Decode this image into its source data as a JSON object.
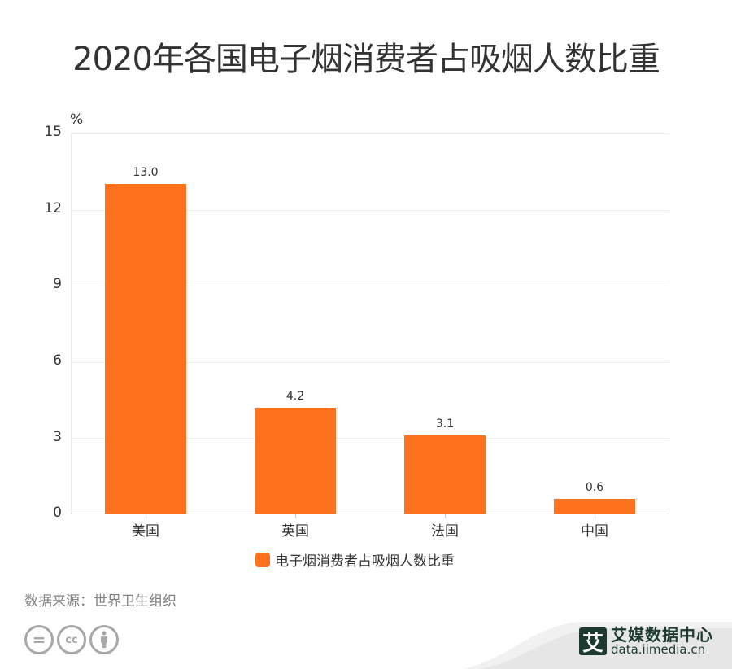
{
  "title": "2020年各国电子烟消费者占吸烟人数比重",
  "chart_data": {
    "type": "bar",
    "title": "2020年各国电子烟消费者占吸烟人数比重",
    "categories": [
      "美国",
      "英国",
      "法国",
      "中国"
    ],
    "series": [
      {
        "name": "电子烟消费者占吸烟人数比重",
        "values": [
          13.0,
          4.2,
          3.1,
          0.6
        ],
        "color": "#ff711d"
      }
    ],
    "value_labels": [
      "13.0",
      "4.2",
      "3.1",
      "0.6"
    ],
    "xlabel": "",
    "ylabel": "%",
    "ylim": [
      0,
      15
    ],
    "yticks": [
      "0",
      "3",
      "6",
      "9",
      "12",
      "15"
    ],
    "grid": true,
    "legend_position": "bottom"
  },
  "legend": {
    "label": "电子烟消费者占吸烟人数比重",
    "color": "#ff711d"
  },
  "footer": {
    "source": "数据来源：世界卫生组织",
    "license_icons": [
      "nd-icon",
      "cc-icon",
      "by-icon"
    ],
    "cc_text": "cc",
    "nd_text": "=",
    "brand_logo_char": "艾",
    "brand_name": "艾媒数据中心",
    "brand_url": "data.iimedia.cn"
  }
}
